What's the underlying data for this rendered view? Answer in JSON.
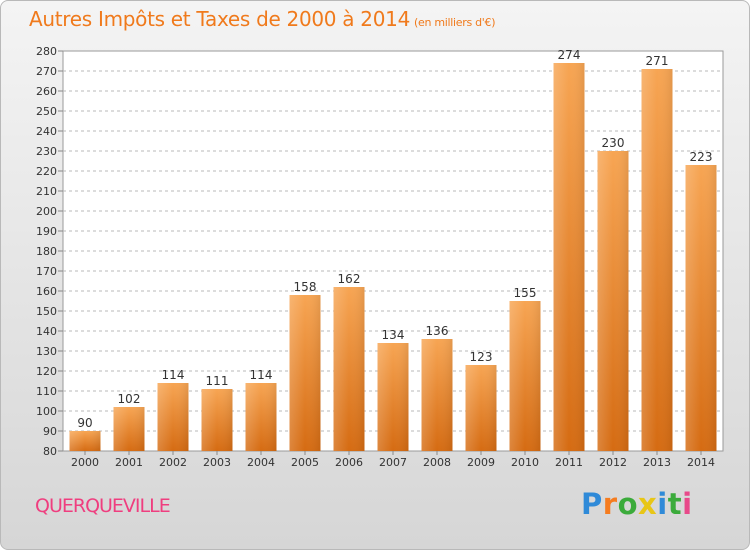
{
  "title": "Autres Impôts et Taxes de 2000 à 2014",
  "unit_note": "(en milliers d'€)",
  "commune": "QUERQUEVILLE",
  "brand": {
    "letters": [
      "P",
      "r",
      "o",
      "x",
      "i",
      "t",
      "i"
    ],
    "colors": [
      "#2f8ad8",
      "#f57c1f",
      "#3bab3b",
      "#e8c616",
      "#2f8ad8",
      "#3bab3b",
      "#e84a8a"
    ]
  },
  "chart_data": {
    "type": "bar",
    "title": "Autres Impôts et Taxes de 2000 à 2014",
    "subtitle": "(en milliers d'€)",
    "categories": [
      "2000",
      "2001",
      "2002",
      "2003",
      "2004",
      "2005",
      "2006",
      "2007",
      "2008",
      "2009",
      "2010",
      "2011",
      "2012",
      "2013",
      "2014"
    ],
    "values": [
      90,
      102,
      114,
      111,
      114,
      158,
      162,
      134,
      136,
      123,
      155,
      274,
      230,
      271,
      223
    ],
    "ylim": [
      80,
      280
    ],
    "yticks": [
      80,
      90,
      100,
      110,
      120,
      130,
      140,
      150,
      160,
      170,
      180,
      190,
      200,
      210,
      220,
      230,
      240,
      250,
      260,
      270,
      280
    ],
    "grid": true,
    "bar_color": "#f0821e",
    "xlabel": "",
    "ylabel": ""
  }
}
